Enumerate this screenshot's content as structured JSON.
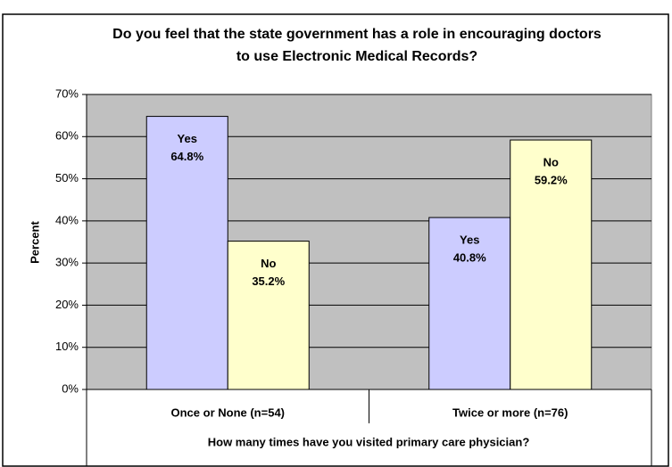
{
  "chart_data": {
    "type": "bar",
    "title": "Do you feel that the state government has a role in encouraging doctors to use Electronic Medical Records?",
    "y_label": "Percent",
    "x_label": "How many times have you visited primary care physician?",
    "categories": [
      "Once or None  (n=54)",
      "Twice or more  (n=76)"
    ],
    "series": [
      {
        "name": "Yes",
        "color": "#ccccff",
        "values": [
          64.8,
          40.8
        ],
        "value_labels": [
          "64.8%",
          "40.8%"
        ]
      },
      {
        "name": "No",
        "color": "#ffffcc",
        "values": [
          35.2,
          59.2
        ],
        "value_labels": [
          "35.2%",
          "59.2%"
        ]
      }
    ],
    "ylim": [
      0,
      70
    ],
    "yticks": [
      {
        "value": 0,
        "label": "0%"
      },
      {
        "value": 10,
        "label": "10%"
      },
      {
        "value": 20,
        "label": "20%"
      },
      {
        "value": 30,
        "label": "30%"
      },
      {
        "value": 40,
        "label": "40%"
      },
      {
        "value": 50,
        "label": "50%"
      },
      {
        "value": 60,
        "label": "60%"
      },
      {
        "value": 70,
        "label": "70%"
      }
    ],
    "grid": true,
    "plot_background": "#c0c0c0"
  }
}
